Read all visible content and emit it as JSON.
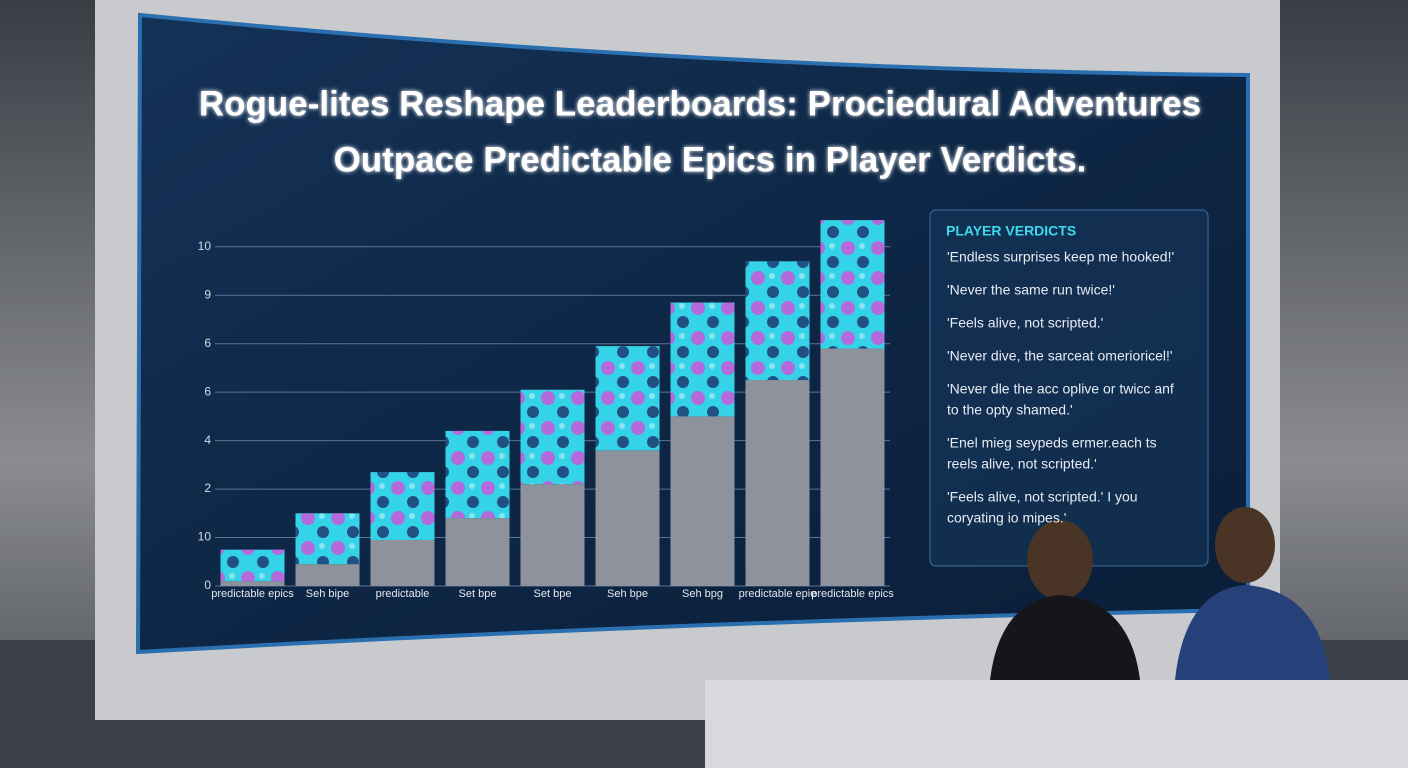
{
  "chart_data": {
    "type": "stacked_bar",
    "title": [
      "Rogue-lites Reshape Leaderboards: Prociedural Adventures",
      "Outpace Predictable Epics in Player Verdicts."
    ],
    "categories": [
      "predictable epics",
      "Seh bipe",
      "predictable",
      "Set bpe",
      "Set bpe",
      "Seh bpe",
      "Seh bpg",
      "predictable epie",
      "predictable epics"
    ],
    "series": [
      {
        "color": "#8d929c",
        "values": [
          0.1,
          0.45,
          0.95,
          1.4,
          2.1,
          2.8,
          3.5,
          4.25,
          4.9
        ]
      },
      {
        "color": "#35d3e8",
        "values": [
          0.65,
          1.05,
          1.4,
          1.8,
          1.95,
          2.15,
          2.35,
          2.45,
          2.65
        ]
      }
    ],
    "ylim": [
      0,
      7.8
    ],
    "yticks": [
      {
        "value": 0,
        "label": "0"
      },
      {
        "value": 1,
        "label": "10"
      },
      {
        "value": 2,
        "label": "2"
      },
      {
        "value": 3,
        "label": "4"
      },
      {
        "value": 4,
        "label": "6"
      },
      {
        "value": 5,
        "label": "6"
      },
      {
        "value": 6,
        "label": "9"
      },
      {
        "value": 7,
        "label": "10"
      }
    ],
    "grid": true,
    "panel": {
      "title": "PLAYER VERDICTS",
      "quotes": [
        [
          "'Endless surprises keep me hooked!'"
        ],
        [
          "'Never the same run twice!'"
        ],
        [
          "'Feels alive, not scripted.'"
        ],
        [
          "'Never dive, the sarceat omerioricel!'"
        ],
        [
          "'Never dle the acc oplive or twicc anf",
          "to the opty shamed.'"
        ],
        [
          "'Enel mieg seypeds ermer.each ts",
          "reels alive, not scripted.'"
        ],
        [
          "'Feels alive, not scripted.' I you",
          "coryating io mipes.'"
        ]
      ]
    }
  }
}
